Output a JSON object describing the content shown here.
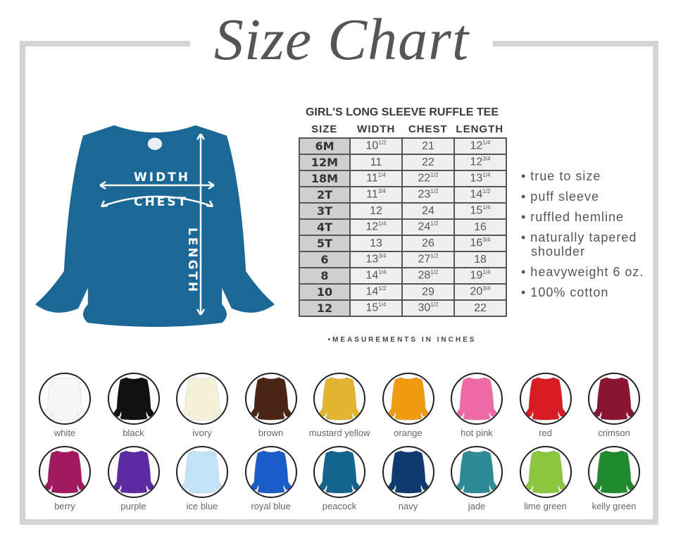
{
  "title": "Size Chart",
  "product": {
    "color": "#1b6795",
    "labels": {
      "width": "WIDTH",
      "chest": "CHEST",
      "length": "LENGTH"
    }
  },
  "table": {
    "title": "GIRL'S LONG SLEEVE RUFFLE TEE",
    "headers": [
      "SIZE",
      "WIDTH",
      "CHEST",
      "LENGTH"
    ],
    "rows": [
      [
        "6M",
        "10 1/2",
        "21",
        "12 1/4"
      ],
      [
        "12M",
        "11",
        "22",
        "12 3/4"
      ],
      [
        "18M",
        "11 1/4",
        "22 1/2",
        "13 1/4"
      ],
      [
        "2T",
        "11 3/4",
        "23 1/2",
        "14 1/2"
      ],
      [
        "3T",
        "12",
        "24",
        "15 1/4"
      ],
      [
        "4T",
        "12 1/4",
        "24 1/2",
        "16"
      ],
      [
        "5T",
        "13",
        "26",
        "16 3/4"
      ],
      [
        "6",
        "13 3/4",
        "27 1/2",
        "18"
      ],
      [
        "8",
        "14 1/4",
        "28 1/2",
        "19 1/4"
      ],
      [
        "10",
        "14 1/2",
        "29",
        "20 3/4"
      ],
      [
        "12",
        "15 1/4",
        "30 1/2",
        "22"
      ]
    ],
    "note": "•MEASUREMENTS IN INCHES"
  },
  "features": [
    "• true to size",
    "• puff sleeve",
    "• ruffled hemline",
    "• naturally tapered shoulder",
    "• heavyweight 6 oz.",
    "• 100% cotton"
  ],
  "colors": [
    {
      "name": "white",
      "hex": "#f7f7f7"
    },
    {
      "name": "black",
      "hex": "#111111"
    },
    {
      "name": "ivory",
      "hex": "#f3f1d8"
    },
    {
      "name": "brown",
      "hex": "#4a2416"
    },
    {
      "name": "mustard yellow",
      "hex": "#e2b531"
    },
    {
      "name": "orange",
      "hex": "#f09a10"
    },
    {
      "name": "hot pink",
      "hex": "#ee6aa4"
    },
    {
      "name": "red",
      "hex": "#d81c24"
    },
    {
      "name": "crimson",
      "hex": "#8a1530"
    },
    {
      "name": "berry",
      "hex": "#a0195f"
    },
    {
      "name": "purple",
      "hex": "#5b2aa0"
    },
    {
      "name": "ice blue",
      "hex": "#c4e2f6"
    },
    {
      "name": "royal blue",
      "hex": "#1a5cc8"
    },
    {
      "name": "peacock",
      "hex": "#15648e"
    },
    {
      "name": "navy",
      "hex": "#0f3a6e"
    },
    {
      "name": "jade",
      "hex": "#2e8a94"
    },
    {
      "name": "lime green",
      "hex": "#8cc63f"
    },
    {
      "name": "kelly green",
      "hex": "#1f8a2e"
    }
  ]
}
